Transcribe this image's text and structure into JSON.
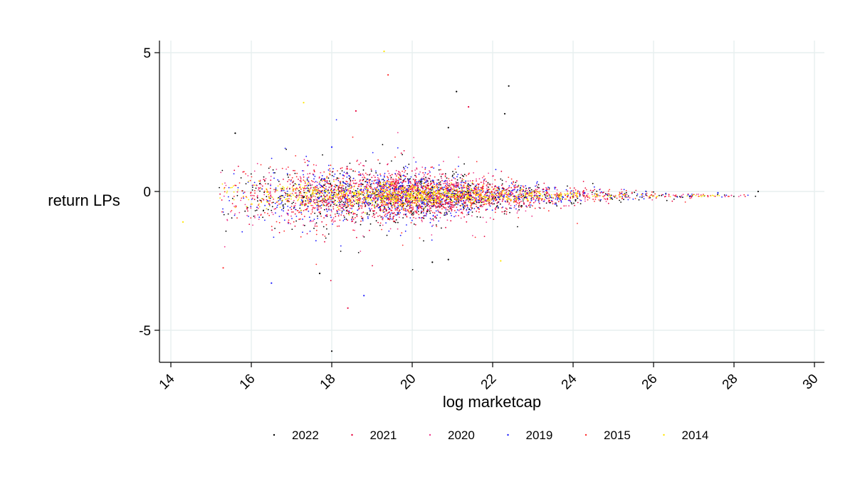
{
  "chart_data": {
    "type": "scatter",
    "title": "",
    "xlabel": "log marketcap",
    "ylabel": "return LPs",
    "xlim": [
      14,
      30
    ],
    "ylim": [
      -6.2,
      5.4
    ],
    "xticks": [
      {
        "value": 14,
        "label": "14"
      },
      {
        "value": 16,
        "label": "16"
      },
      {
        "value": 18,
        "label": "18"
      },
      {
        "value": 20,
        "label": "20"
      },
      {
        "value": 22,
        "label": "22"
      },
      {
        "value": 24,
        "label": "24"
      },
      {
        "value": 26,
        "label": "26"
      },
      {
        "value": 28,
        "label": "28"
      },
      {
        "value": 30,
        "label": "30"
      }
    ],
    "yticks": [
      {
        "value": 5,
        "label": "5"
      },
      {
        "value": 0,
        "label": "0"
      },
      {
        "value": -5,
        "label": "-5"
      }
    ],
    "grid": true,
    "legend_position": "bottom",
    "series": [
      {
        "name": "2022",
        "color": "#000000"
      },
      {
        "name": "2021",
        "color": "#e8003a"
      },
      {
        "name": "2020",
        "color": "#f03a8c"
      },
      {
        "name": "2019",
        "color": "#1a1aff"
      },
      {
        "name": "2015",
        "color": "#ff2a2a"
      },
      {
        "name": "2014",
        "color": "#ffe600"
      }
    ],
    "sample_points": [
      {
        "series": "2014",
        "x": 19.3,
        "y": 5.05
      },
      {
        "series": "2015",
        "x": 19.4,
        "y": 4.2
      },
      {
        "series": "2022",
        "x": 22.4,
        "y": 3.8
      },
      {
        "series": "2022",
        "x": 21.1,
        "y": 3.6
      },
      {
        "series": "2021",
        "x": 21.4,
        "y": 3.05
      },
      {
        "series": "2022",
        "x": 22.3,
        "y": 2.8
      },
      {
        "series": "2022",
        "x": 15.6,
        "y": 2.1
      },
      {
        "series": "2022",
        "x": 20.9,
        "y": 2.3
      },
      {
        "series": "2019",
        "x": 18.0,
        "y": 1.6
      },
      {
        "series": "2014",
        "x": 17.3,
        "y": 3.2
      },
      {
        "series": "2021",
        "x": 18.6,
        "y": 2.9
      },
      {
        "series": "2019",
        "x": 16.5,
        "y": -3.3
      },
      {
        "series": "2015",
        "x": 15.3,
        "y": -2.75
      },
      {
        "series": "2022",
        "x": 17.7,
        "y": -2.95
      },
      {
        "series": "2021",
        "x": 18.4,
        "y": -4.2
      },
      {
        "series": "2019",
        "x": 18.8,
        "y": -3.75
      },
      {
        "series": "2022",
        "x": 18.0,
        "y": -5.75
      },
      {
        "series": "2022",
        "x": 20.5,
        "y": -2.55
      },
      {
        "series": "2022",
        "x": 20.9,
        "y": -2.45
      },
      {
        "series": "2014",
        "x": 22.2,
        "y": -2.5
      },
      {
        "series": "2022",
        "x": 28.6,
        "y": 0.0
      },
      {
        "series": "2019",
        "x": 27.6,
        "y": -0.05
      },
      {
        "series": "2014",
        "x": 14.3,
        "y": -1.1
      }
    ],
    "cloud_description_note_omitted": true,
    "cloud": {
      "x_center_min": 15.2,
      "x_center_max": 28.6,
      "y_center": -0.15,
      "spread_at_x": [
        {
          "x": 15.5,
          "sd": 0.6
        },
        {
          "x": 17.0,
          "sd": 0.55
        },
        {
          "x": 19.0,
          "sd": 0.5
        },
        {
          "x": 21.0,
          "sd": 0.35
        },
        {
          "x": 23.0,
          "sd": 0.22
        },
        {
          "x": 25.0,
          "sd": 0.12
        },
        {
          "x": 27.0,
          "sd": 0.05
        },
        {
          "x": 28.6,
          "sd": 0.02
        }
      ],
      "x_density_peak": 19.2
    }
  }
}
